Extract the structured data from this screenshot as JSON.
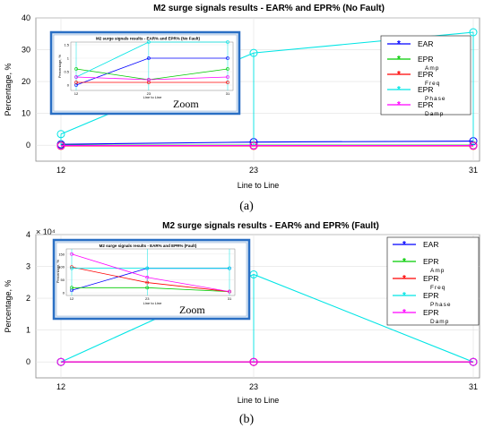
{
  "chart_data": [
    {
      "type": "line",
      "title": "M2 surge signals results - EAR% and EPR% (No Fault)",
      "xlabel": "Line to Line",
      "ylabel": "Percentage, %",
      "categories": [
        "12",
        "23",
        "31"
      ],
      "ylim": [
        -5,
        40
      ],
      "yticks": [
        0,
        10,
        20,
        30,
        40
      ],
      "grid": true,
      "legend_position": "top-right",
      "series": [
        {
          "name": "EAR",
          "sub": "",
          "color": "#0000ff",
          "values": [
            0.3,
            1.0,
            1.3
          ]
        },
        {
          "name": "EPR",
          "sub": "Amp",
          "color": "#00cc00",
          "values": [
            0.0,
            0.0,
            0.0
          ]
        },
        {
          "name": "EPR",
          "sub": "Freq",
          "color": "#ff0000",
          "values": [
            -0.2,
            -0.2,
            -0.2
          ]
        },
        {
          "name": "EPR",
          "sub": "Phase",
          "color": "#00e5e5",
          "values": [
            3.5,
            29.0,
            35.5
          ]
        },
        {
          "name": "EPR",
          "sub": "Damp",
          "color": "#ff00ff",
          "values": [
            -0.1,
            -0.1,
            -0.1
          ]
        }
      ],
      "inset": {
        "title": "M2 surge signals results - EAR% and EPR% (No Fault)",
        "xlabel": "Line to Line",
        "ylabel": "Percentage, %",
        "label": "Zoom",
        "yticks": [
          "1.5",
          "1",
          "0.5",
          "0"
        ],
        "ylim": [
          -0.2,
          1.6
        ],
        "series": [
          {
            "color": "#0000ff",
            "values": [
              0.0,
              1.0,
              1.0
            ]
          },
          {
            "color": "#00cc00",
            "values": [
              0.6,
              0.2,
              0.6
            ]
          },
          {
            "color": "#ff0000",
            "values": [
              0.1,
              0.1,
              0.1
            ]
          },
          {
            "color": "#00e5e5",
            "values": [
              0.3,
              1.8,
              1.8
            ]
          },
          {
            "color": "#ff00ff",
            "values": [
              0.3,
              0.2,
              0.3
            ]
          }
        ]
      },
      "caption": "(a)"
    },
    {
      "type": "line",
      "title": "M2 surge signals results - EAR% and EPR% (Fault)",
      "xlabel": "Line to Line",
      "ylabel": "Percentage, %",
      "categories": [
        "12",
        "23",
        "31"
      ],
      "ylim": [
        -0.5,
        4
      ],
      "yticks": [
        0,
        1,
        2,
        3,
        4
      ],
      "y_multiplier": "× 10⁴",
      "grid": true,
      "legend_position": "top-right",
      "series": [
        {
          "name": "EAR",
          "sub": "",
          "color": "#0000ff",
          "values": [
            0,
            0,
            0
          ]
        },
        {
          "name": "EPR",
          "sub": "Amp",
          "color": "#00cc00",
          "values": [
            0,
            0,
            0
          ]
        },
        {
          "name": "EPR",
          "sub": "Freq",
          "color": "#ff0000",
          "values": [
            0,
            0,
            0
          ]
        },
        {
          "name": "EPR",
          "sub": "Phase",
          "color": "#00e5e5",
          "values": [
            0,
            2.75,
            0
          ]
        },
        {
          "name": "EPR",
          "sub": "Damp",
          "color": "#ff00ff",
          "values": [
            0,
            0,
            0
          ]
        }
      ],
      "inset": {
        "title": "M2 surge signals results - EAR% and EPR% (Fault)",
        "xlabel": "Line to Line",
        "ylabel": "Percentage, %",
        "label": "Zoom",
        "yticks": [
          "150",
          "100",
          "50",
          "0"
        ],
        "ylim": [
          -10,
          170
        ],
        "series": [
          {
            "color": "#0000ff",
            "values": [
              10,
              95,
              95
            ]
          },
          {
            "color": "#00cc00",
            "values": [
              20,
              20,
              5
            ]
          },
          {
            "color": "#ff0000",
            "values": [
              100,
              40,
              5
            ]
          },
          {
            "color": "#00e5e5",
            "values": [
              95,
              95,
              95
            ]
          },
          {
            "color": "#ff00ff",
            "values": [
              150,
              60,
              5
            ]
          }
        ]
      },
      "caption": "(b)"
    }
  ]
}
